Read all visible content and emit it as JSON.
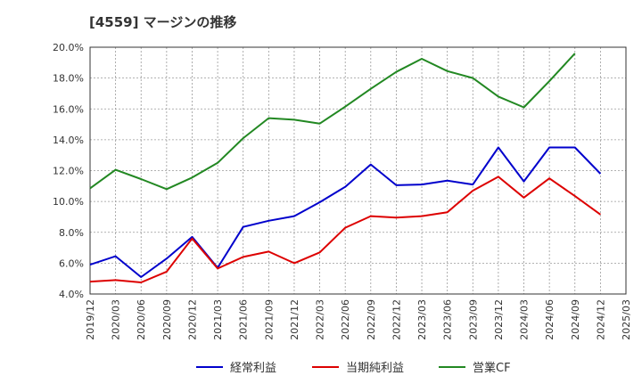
{
  "chart_data": {
    "type": "line",
    "title": "[4559]  マージンの推移",
    "x": [
      "2019/12",
      "2020/03",
      "2020/06",
      "2020/09",
      "2020/12",
      "2021/03",
      "2021/06",
      "2021/09",
      "2021/12",
      "2022/03",
      "2022/06",
      "2022/09",
      "2022/12",
      "2023/03",
      "2023/06",
      "2023/09",
      "2023/12",
      "2024/03",
      "2024/06",
      "2024/09",
      "2024/12",
      "2025/03"
    ],
    "y_ticks": [
      "4.0%",
      "6.0%",
      "8.0%",
      "10.0%",
      "12.0%",
      "14.0%",
      "16.0%",
      "18.0%",
      "20.0%"
    ],
    "ylim": [
      4,
      20
    ],
    "grid": true,
    "legend_position": "bottom",
    "series": [
      {
        "name": "経常利益",
        "color": "#0000cc",
        "values": [
          5.9,
          6.45,
          5.1,
          6.3,
          7.7,
          5.7,
          8.35,
          8.75,
          9.05,
          9.95,
          10.95,
          12.4,
          11.05,
          11.1,
          11.35,
          11.1,
          13.5,
          11.3,
          13.5,
          13.5,
          11.8,
          null
        ]
      },
      {
        "name": "当期純利益",
        "color": "#dd0000",
        "values": [
          4.8,
          4.9,
          4.75,
          5.45,
          7.6,
          5.65,
          6.4,
          6.75,
          6.0,
          6.7,
          8.3,
          9.05,
          8.95,
          9.05,
          9.3,
          10.7,
          11.6,
          10.25,
          11.5,
          10.35,
          9.15,
          null
        ]
      },
      {
        "name": "営業CF",
        "color": "#228822",
        "values": [
          10.85,
          12.05,
          11.45,
          10.8,
          11.55,
          12.5,
          14.1,
          15.4,
          15.3,
          15.05,
          16.15,
          17.3,
          18.4,
          19.25,
          18.45,
          18.0,
          16.8,
          16.1,
          17.8,
          19.6,
          null,
          null
        ]
      }
    ]
  }
}
